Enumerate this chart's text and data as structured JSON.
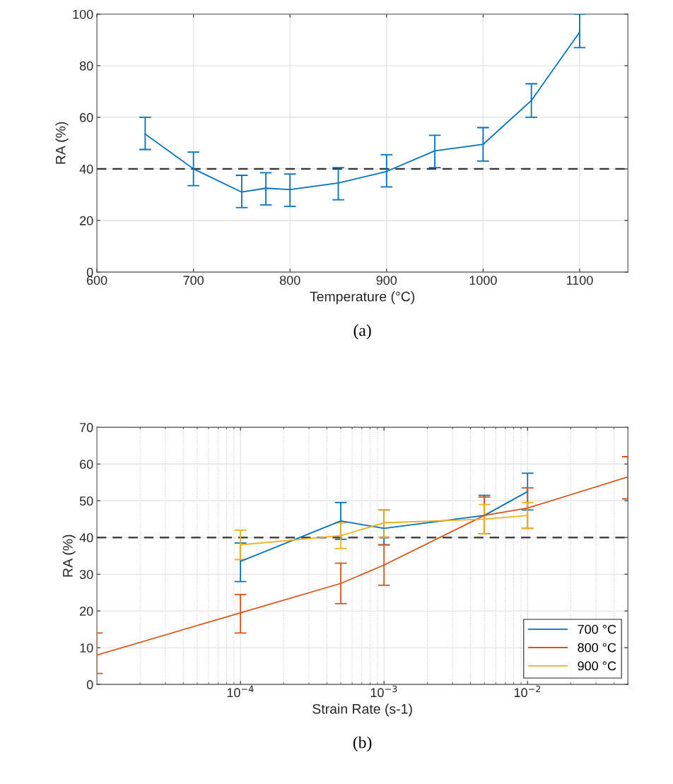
{
  "chart_data": [
    {
      "type": "line",
      "title": "(a)",
      "xlabel": "Temperature (°C)",
      "ylabel": "RA (%)",
      "x": [
        650,
        700,
        750,
        775,
        800,
        850,
        900,
        950,
        1000,
        1050,
        1100
      ],
      "series": [
        {
          "color": "#0072bd",
          "values": [
            53.5,
            40,
            31,
            32.5,
            32,
            34.5,
            39,
            47,
            49.5,
            66.5,
            93
          ],
          "errors": [
            [
              47.5,
              60
            ],
            [
              33.5,
              46.5
            ],
            [
              25,
              37.5
            ],
            [
              26,
              38.5
            ],
            [
              25.5,
              38
            ],
            [
              28,
              40.5
            ],
            [
              33,
              45.5
            ],
            [
              40.5,
              53
            ],
            [
              43,
              56
            ],
            [
              60,
              73
            ],
            [
              87,
              100
            ]
          ]
        }
      ],
      "xlim": [
        600,
        1150
      ],
      "xticks": [
        600,
        700,
        800,
        900,
        1000,
        1100
      ],
      "ylim": [
        0,
        100
      ],
      "yticks": [
        0,
        20,
        40,
        60,
        80,
        100
      ],
      "grid": true,
      "legend": false,
      "ref_lines": [
        {
          "axis": "y",
          "value": 40,
          "color": "#333333",
          "line_style": "dashed"
        }
      ]
    },
    {
      "type": "line",
      "title": "(b)",
      "xlabel": "Strain Rate (s-1)",
      "ylabel": "RA (%)",
      "log": "x",
      "series": [
        {
          "name": "700 °C",
          "color": "#0072bd",
          "x": [
            0.0001,
            0.0005,
            0.001,
            0.005,
            0.01
          ],
          "values": [
            33.5,
            44.5,
            42.5,
            46,
            52.5
          ],
          "errors": [
            [
              28,
              38.5
            ],
            [
              39.5,
              49.5
            ],
            [
              38,
              47.5
            ],
            [
              41,
              51.5
            ],
            [
              47.5,
              57.5
            ]
          ]
        },
        {
          "name": "800 °C",
          "color": "#d95319",
          "x": [
            1e-05,
            0.0001,
            0.0005,
            0.001,
            0.005,
            0.01,
            0.05
          ],
          "values": [
            8,
            19.5,
            27.5,
            32.5,
            46,
            48,
            56.5
          ],
          "errors": [
            [
              3,
              14
            ],
            [
              14,
              24.5
            ],
            [
              22,
              33
            ],
            [
              27,
              38
            ],
            [
              41,
              51
            ],
            [
              42.5,
              53.5
            ],
            [
              50.5,
              62
            ]
          ]
        },
        {
          "name": "900 °C",
          "color": "#edb120",
          "x": [
            0.0001,
            0.0005,
            0.001,
            0.005,
            0.01
          ],
          "values": [
            38,
            40.5,
            44,
            45,
            46
          ],
          "errors": [
            [
              34,
              42
            ],
            [
              37,
              44
            ],
            [
              40,
              47.5
            ],
            [
              41,
              49
            ],
            [
              42.5,
              49.5
            ]
          ]
        }
      ],
      "xlim": [
        1e-05,
        0.05
      ],
      "xticks": [
        {
          "value": 0.0001,
          "label": "10$^{−4}$"
        },
        {
          "value": 0.001,
          "label": "10$^{−3}$"
        },
        {
          "value": 0.01,
          "label": "10$^{−2}$"
        }
      ],
      "ylim": [
        0,
        70
      ],
      "yticks": [
        0,
        10,
        20,
        30,
        40,
        50,
        60,
        70
      ],
      "grid": true,
      "legend": "bottom right",
      "ref_lines": [
        {
          "axis": "y",
          "value": 40,
          "color": "#333333",
          "line_style": "dashed"
        }
      ]
    }
  ]
}
